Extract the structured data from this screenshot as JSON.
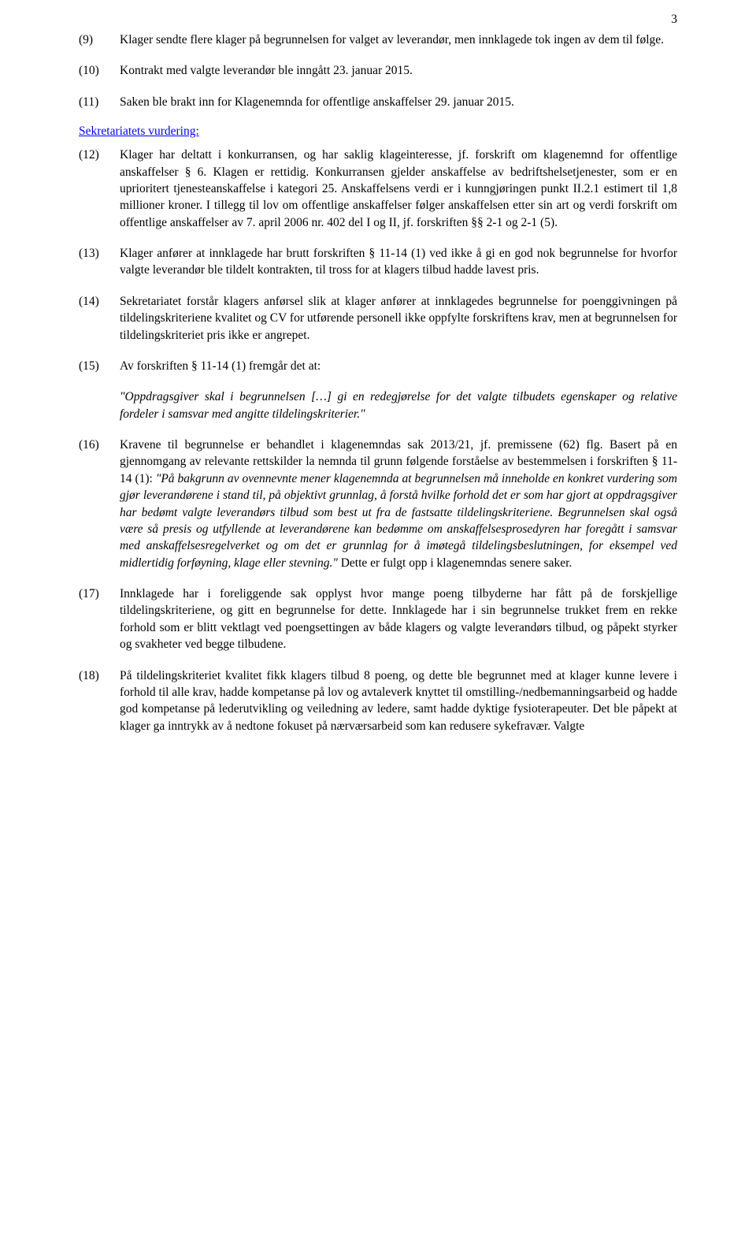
{
  "page_number": "3",
  "paragraphs": {
    "p9": {
      "num": "(9)",
      "text": "Klager sendte flere klager på begrunnelsen for valget av leverandør, men innklagede tok ingen av dem til følge."
    },
    "p10": {
      "num": "(10)",
      "text": "Kontrakt med valgte leverandør ble inngått 23. januar 2015."
    },
    "p11": {
      "num": "(11)",
      "text": "Saken ble brakt inn for Klagenemnda for offentlige anskaffelser 29. januar 2015."
    },
    "p12": {
      "num": "(12)",
      "text": "Klager har deltatt i konkurransen, og har saklig klageinteresse, jf. forskrift om klagenemnd for offentlige anskaffelser § 6. Klagen er rettidig. Konkurransen gjelder anskaffelse av bedriftshelsetjenester, som er en uprioritert tjenesteanskaffelse i kategori 25. Anskaffelsens verdi er i kunngjøringen punkt II.2.1 estimert til 1,8 millioner kroner. I tillegg til lov om offentlige anskaffelser følger anskaffelsen etter sin art og verdi forskrift om offentlige anskaffelser av 7. april 2006 nr. 402 del I og II, jf. forskriften §§ 2-1 og 2-1 (5)."
    },
    "p13": {
      "num": "(13)",
      "text": "Klager anfører at innklagede har brutt forskriften § 11-14 (1) ved ikke å gi en god nok begrunnelse for hvorfor valgte leverandør ble tildelt kontrakten, til tross for at klagers tilbud hadde lavest pris."
    },
    "p14": {
      "num": "(14)",
      "text": "Sekretariatet forstår klagers anførsel slik at klager anfører at innklagedes begrunnelse for poenggivningen på tildelingskriteriene kvalitet og CV for utførende personell ikke oppfylte forskriftens krav, men at begrunnelsen for tildelingskriteriet pris ikke er angrepet."
    },
    "p15": {
      "num": "(15)",
      "text": "Av forskriften § 11-14 (1) fremgår det at:"
    },
    "p16": {
      "num": "(16)",
      "pre": "Kravene til begrunnelse er behandlet i klagenemndas sak 2013/21, jf. premissene (62) flg. Basert på en gjennomgang av relevante rettskilder la nemnda til grunn følgende forståelse av bestemmelsen i forskriften § 11-14 (1): ",
      "quote": "\"På bakgrunn av ovennevnte mener klagenemnda at begrunnelsen må inneholde en konkret vurdering som gjør leverandørene i stand til, på objektivt grunnlag, å forstå hvilke forhold det er som har gjort at oppdragsgiver har bedømt valgte leverandørs tilbud som best ut fra de fastsatte tildelingskriteriene. Begrunnelsen skal også være så presis og utfyllende at leverandørene kan bedømme om anskaffelsesprosedyren har foregått i samsvar med anskaffelsesregelverket og om det er grunnlag for å imøtegå tildelingsbeslutningen, for eksempel ved midlertidig forføyning, klage eller stevning.\"",
      "post": " Dette er fulgt opp i klagenemndas senere saker."
    },
    "p17": {
      "num": "(17)",
      "text": "Innklagede har i foreliggende sak opplyst hvor mange poeng tilbyderne har fått på de forskjellige tildelingskriteriene, og gitt en begrunnelse for dette. Innklagede har i sin begrunnelse trukket frem en rekke forhold som er blitt vektlagt ved poengsettingen av både klagers og valgte leverandørs tilbud, og påpekt styrker og svakheter ved begge tilbudene."
    },
    "p18": {
      "num": "(18)",
      "text": "På tildelingskriteriet kvalitet fikk klagers tilbud 8 poeng, og dette ble begrunnet med at klager kunne levere i forhold til alle krav, hadde kompetanse på lov og avtaleverk knyttet til omstilling-/nedbemanningsarbeid og hadde god kompetanse på lederutvikling og veiledning av ledere, samt hadde dyktige fysioterapeuter. Det ble påpekt at klager ga inntrykk av å nedtone fokuset på nærværsarbeid som kan redusere sykefravær. Valgte"
    }
  },
  "section_heading": "Sekretariatets vurdering:",
  "quote15": "\"Oppdragsgiver skal i begrunnelsen […] gi en redegjørelse for det valgte tilbudets egenskaper og relative fordeler i samsvar med angitte tildelingskriterier.\""
}
